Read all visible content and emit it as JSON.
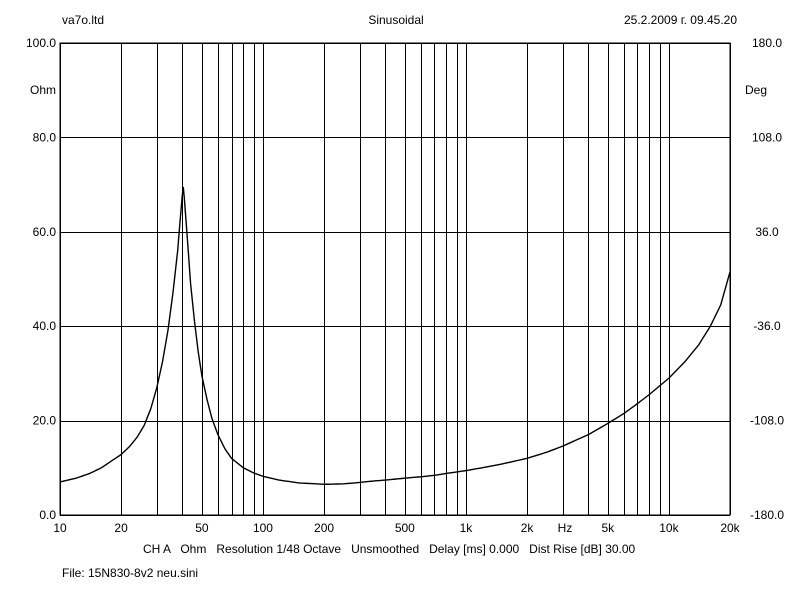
{
  "header": {
    "left": "va7o.ltd",
    "center": "Sinusoidal",
    "right": "25.2.2009 г. 09.45.20"
  },
  "footer": {
    "settings": "CH A   Ohm   Resolution 1/48 Octave   Unsmoothed   Delay [ms] 0.000   Dist Rise [dB] 30.00",
    "file": "File: 15N830-8v2 neu.sini"
  },
  "colors": {
    "background": "#ffffff",
    "ink": "#000000"
  },
  "chart_data": {
    "type": "line",
    "title": "Sinusoidal",
    "x_scale": "log",
    "xlim": [
      10,
      20000
    ],
    "ylim": [
      0,
      100
    ],
    "y2lim": [
      -180,
      180
    ],
    "left_unit": "Ohm",
    "right_unit": "Deg",
    "x_unit": "Hz",
    "grid": true,
    "x_ticks": [
      {
        "value": 10,
        "label": "10"
      },
      {
        "value": 20,
        "label": "20"
      },
      {
        "value": 50,
        "label": "50"
      },
      {
        "value": 100,
        "label": "100"
      },
      {
        "value": 200,
        "label": "200"
      },
      {
        "value": 500,
        "label": "500"
      },
      {
        "value": 1000,
        "label": "1k"
      },
      {
        "value": 2000,
        "label": "2k"
      },
      {
        "value": 5000,
        "label": "5k"
      },
      {
        "value": 10000,
        "label": "10k"
      },
      {
        "value": 20000,
        "label": "20k"
      }
    ],
    "x_gridlines": [
      10,
      20,
      30,
      40,
      50,
      60,
      70,
      80,
      90,
      100,
      200,
      300,
      400,
      500,
      600,
      700,
      800,
      900,
      1000,
      2000,
      3000,
      4000,
      5000,
      6000,
      7000,
      8000,
      9000,
      10000,
      20000
    ],
    "y_ticks": [
      {
        "value": 0,
        "label": "0.0"
      },
      {
        "value": 20,
        "label": "20.0"
      },
      {
        "value": 40,
        "label": "40.0"
      },
      {
        "value": 60,
        "label": "60.0"
      },
      {
        "value": 80,
        "label": "80.0"
      },
      {
        "value": 100,
        "label": "100.0"
      }
    ],
    "y2_ticks": [
      {
        "value": -180,
        "label": "-180.0"
      },
      {
        "value": -108,
        "label": "-108.0"
      },
      {
        "value": -36,
        "label": "-36.0"
      },
      {
        "value": 36,
        "label": "36.0"
      },
      {
        "value": 108,
        "label": "108.0"
      },
      {
        "value": 180,
        "label": "180.0"
      }
    ],
    "series": [
      {
        "points": [
          [
            10,
            7.0
          ],
          [
            12,
            7.8
          ],
          [
            14,
            8.8
          ],
          [
            16,
            10.0
          ],
          [
            18,
            11.5
          ],
          [
            20,
            12.8
          ],
          [
            22,
            14.5
          ],
          [
            24,
            16.5
          ],
          [
            26,
            19.0
          ],
          [
            28,
            22.5
          ],
          [
            30,
            27.0
          ],
          [
            32,
            32.5
          ],
          [
            34,
            39.0
          ],
          [
            36,
            47.0
          ],
          [
            38,
            56.0
          ],
          [
            39,
            62.0
          ],
          [
            40,
            67.5
          ],
          [
            40.5,
            69.5
          ],
          [
            41,
            67.0
          ],
          [
            42,
            61.0
          ],
          [
            43,
            55.0
          ],
          [
            44,
            49.0
          ],
          [
            46,
            41.0
          ],
          [
            48,
            34.5
          ],
          [
            50,
            29.5
          ],
          [
            53,
            24.5
          ],
          [
            56,
            20.5
          ],
          [
            60,
            17.0
          ],
          [
            65,
            14.0
          ],
          [
            70,
            12.0
          ],
          [
            80,
            10.0
          ],
          [
            90,
            8.9
          ],
          [
            100,
            8.2
          ],
          [
            120,
            7.4
          ],
          [
            150,
            6.8
          ],
          [
            200,
            6.5
          ],
          [
            250,
            6.6
          ],
          [
            300,
            6.9
          ],
          [
            350,
            7.2
          ],
          [
            400,
            7.4
          ],
          [
            500,
            7.8
          ],
          [
            600,
            8.1
          ],
          [
            700,
            8.4
          ],
          [
            800,
            8.8
          ],
          [
            1000,
            9.4
          ],
          [
            1200,
            10.0
          ],
          [
            1500,
            10.8
          ],
          [
            2000,
            12.0
          ],
          [
            2500,
            13.3
          ],
          [
            3000,
            14.6
          ],
          [
            4000,
            17.0
          ],
          [
            5000,
            19.4
          ],
          [
            6000,
            21.5
          ],
          [
            7000,
            23.6
          ],
          [
            8000,
            25.5
          ],
          [
            10000,
            29.0
          ],
          [
            12000,
            32.5
          ],
          [
            14000,
            36.0
          ],
          [
            16000,
            40.0
          ],
          [
            18000,
            44.5
          ],
          [
            20000,
            51.5
          ]
        ]
      }
    ]
  }
}
